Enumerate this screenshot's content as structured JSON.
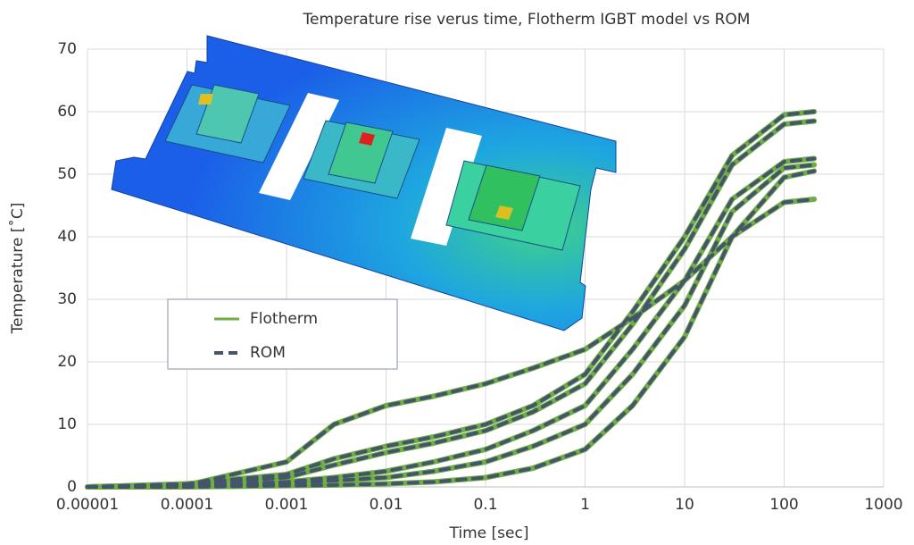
{
  "chart_data": {
    "type": "line",
    "title": "Temperature rise verus time, Flotherm IGBT model vs ROM",
    "x_label": "Time [sec]",
    "y_label": "Temperature [˚C]",
    "xscale": "log",
    "grid": true,
    "legend": "left",
    "x": [
      1e-05,
      0.0001,
      0.001,
      0.003,
      0.01,
      0.03,
      0.1,
      0.3,
      1,
      3,
      10,
      30,
      100,
      200
    ],
    "xlim": [
      1e-05,
      1000
    ],
    "xticks": [
      {
        "value": 1e-05,
        "label": "0.00001"
      },
      0.0001,
      0.001,
      0.01,
      0.1,
      1,
      10,
      100,
      1000
    ],
    "ylim": [
      0,
      70
    ],
    "yticks": [
      0,
      10,
      20,
      30,
      40,
      50,
      60,
      70
    ],
    "series": [
      {
        "name": "Flotherm",
        "color": "#70ad47",
        "dash": false,
        "curves": [
          [
            0,
            0.3,
            4,
            10,
            13,
            14.5,
            16.5,
            19,
            22,
            27,
            33,
            40,
            45.5,
            46
          ],
          [
            0,
            0.5,
            2,
            4.5,
            6.5,
            8,
            10,
            13,
            18,
            28,
            40,
            53,
            59.5,
            60
          ],
          [
            0,
            0.4,
            1.5,
            3.5,
            5.5,
            7,
            9,
            12,
            16.5,
            26,
            38,
            51.5,
            58,
            58.5
          ],
          [
            0,
            0.2,
            0.8,
            1.5,
            2.5,
            4,
            6,
            9,
            13,
            22,
            33,
            46,
            52,
            52.5
          ],
          [
            0,
            0.1,
            0.5,
            1,
            1.5,
            2.5,
            4,
            6.5,
            10,
            18,
            29,
            44,
            51,
            51.5
          ],
          [
            0,
            0,
            0.2,
            0.3,
            0.5,
            0.8,
            1.5,
            3,
            6,
            13,
            24,
            40,
            49.5,
            50.5
          ]
        ]
      },
      {
        "name": "ROM",
        "color": "#44546a",
        "dash": true,
        "curves": [
          [
            0,
            0.3,
            4,
            10,
            13,
            14.5,
            16.5,
            19,
            22,
            27,
            33,
            40,
            45.5,
            46
          ],
          [
            0,
            0.5,
            2,
            4.5,
            6.5,
            8,
            10,
            13,
            18,
            28,
            40,
            53,
            59.5,
            60
          ],
          [
            0,
            0.4,
            1.5,
            3.5,
            5.5,
            7,
            9,
            12,
            16.5,
            26,
            38,
            51.5,
            58,
            58.5
          ],
          [
            0,
            0.2,
            0.8,
            1.5,
            2.5,
            4,
            6,
            9,
            13,
            22,
            33,
            46,
            52,
            52.5
          ],
          [
            0,
            0.1,
            0.5,
            1,
            1.5,
            2.5,
            4,
            6.5,
            10,
            18,
            29,
            44,
            51,
            51.5
          ],
          [
            0,
            0,
            0.2,
            0.3,
            0.5,
            0.8,
            1.5,
            3,
            6,
            13,
            24,
            40,
            49.5,
            50.5
          ]
        ]
      }
    ]
  }
}
